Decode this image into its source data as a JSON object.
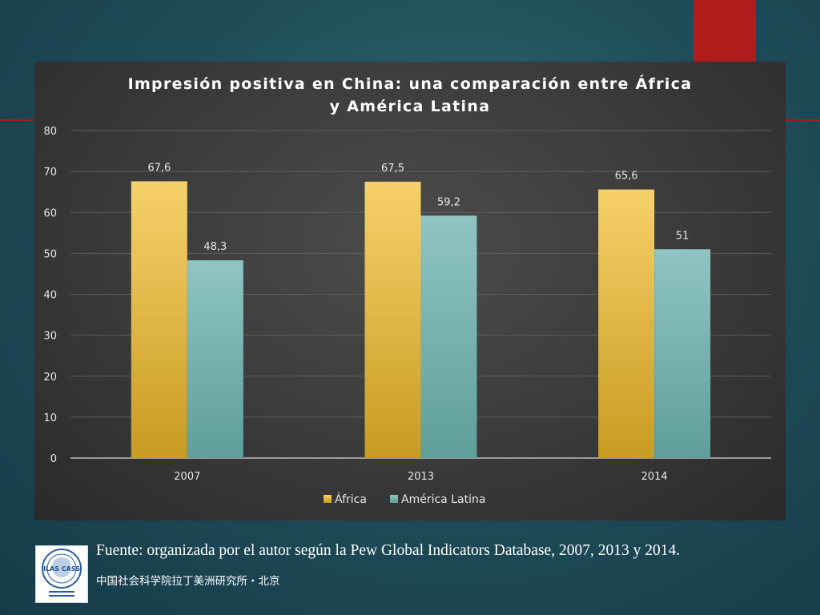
{
  "colors": {
    "series_africa": "#f2c24a",
    "series_latam": "#7fb9b7",
    "accent_red": "#b01c1c"
  },
  "chart_data": {
    "type": "bar",
    "title_line1": "Impresión positiva en China: una comparación entre África",
    "title_line2": "y América Latina",
    "categories": [
      "2007",
      "2013",
      "2014"
    ],
    "series": [
      {
        "name": "África",
        "values": [
          67.6,
          67.5,
          65.6
        ],
        "labels": [
          "67,6",
          "67,5",
          "65,6"
        ]
      },
      {
        "name": "América Latina",
        "values": [
          48.3,
          59.2,
          51
        ],
        "labels": [
          "48,3",
          "59,2",
          "51"
        ]
      }
    ],
    "ylim": [
      0,
      80
    ],
    "yticks": [
      "0",
      "10",
      "20",
      "30",
      "40",
      "50",
      "60",
      "70",
      "80"
    ],
    "grid": true,
    "legend_position": "bottom"
  },
  "footer": {
    "source": "Fuente: organizada por el autor según la Pew Global Indicators Database, 2007, 2013 y 2014.",
    "institute": "中国社会科学院拉丁美洲研究所・北京",
    "logo_text": "ILAS CASS"
  }
}
